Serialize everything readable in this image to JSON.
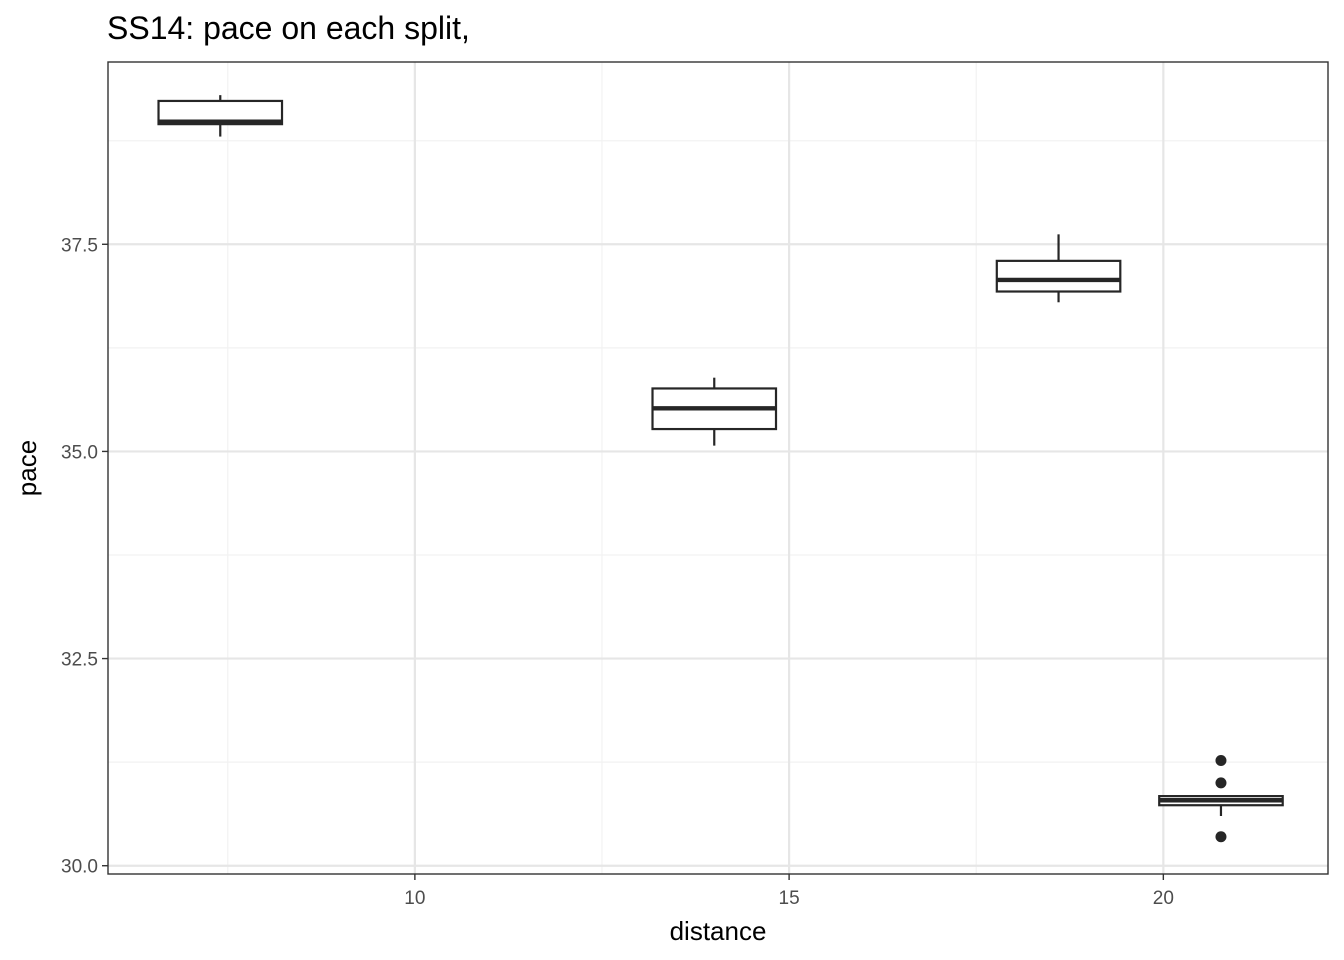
{
  "chart_data": {
    "type": "boxplot",
    "title": "SS14: pace on each split,",
    "xlabel": "distance",
    "ylabel": "pace",
    "xlim": [
      5.9,
      22.2
    ],
    "ylim": [
      29.9,
      39.7
    ],
    "x_ticks": [
      10,
      15,
      20
    ],
    "x_tick_labels": [
      "10",
      "15",
      "20"
    ],
    "x_minor_ticks": [
      7.5,
      12.5,
      17.5
    ],
    "y_ticks": [
      30.0,
      32.5,
      35.0,
      37.5
    ],
    "y_tick_labels": [
      "30.0",
      "32.5",
      "35.0",
      "37.5"
    ],
    "y_minor_ticks": [
      31.25,
      33.75,
      36.25,
      38.75
    ],
    "grid": true,
    "legend": "none",
    "box_width": 1.65,
    "boxes": [
      {
        "x": 7.4,
        "whisker_low": 38.8,
        "q1": 38.95,
        "median": 38.98,
        "q3": 39.23,
        "whisker_high": 39.3,
        "outliers": []
      },
      {
        "x": 14.0,
        "whisker_low": 35.07,
        "q1": 35.27,
        "median": 35.52,
        "q3": 35.76,
        "whisker_high": 35.89,
        "outliers": []
      },
      {
        "x": 18.6,
        "whisker_low": 36.8,
        "q1": 36.93,
        "median": 37.07,
        "q3": 37.3,
        "whisker_high": 37.62,
        "outliers": []
      },
      {
        "x": 20.77,
        "whisker_low": 30.6,
        "q1": 30.73,
        "median": 30.79,
        "q3": 30.84,
        "whisker_high": 30.84,
        "outliers": [
          31.27,
          31.0,
          30.35
        ]
      }
    ]
  },
  "colors": {
    "box_stroke": "#262626",
    "grid_major": "#e6e6e6",
    "grid_minor": "#f2f2f2",
    "panel_border": "#333333",
    "tick_text": "#4d4d4d"
  }
}
